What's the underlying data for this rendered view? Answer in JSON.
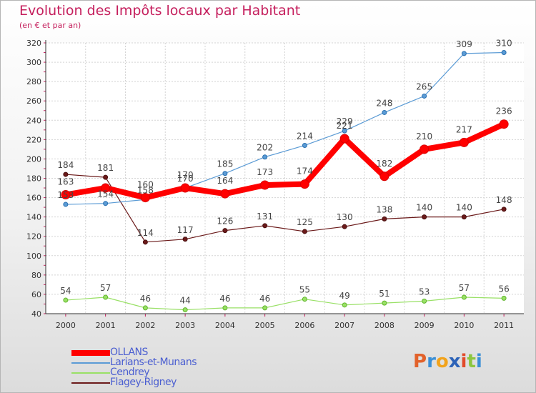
{
  "chart_data": {
    "type": "line",
    "title": "Evolution des Impôts locaux par Habitant",
    "subtitle": "(en € et par an)",
    "xlabel": "",
    "ylabel": "",
    "categories": [
      "2000",
      "2001",
      "2002",
      "2003",
      "2004",
      "2005",
      "2006",
      "2007",
      "2008",
      "2009",
      "2010",
      "2011"
    ],
    "ylim": [
      40,
      320
    ],
    "yticks": [
      "40",
      "60",
      "80",
      "100",
      "120",
      "140",
      "160",
      "180",
      "200",
      "220",
      "240",
      "260",
      "280",
      "300",
      "320"
    ],
    "grid": true,
    "legend_position": "bottom-left",
    "series": [
      {
        "name": "OLLANS",
        "color": "#ff0000",
        "values": [
          163,
          170,
          160,
          170,
          164,
          173,
          174,
          221,
          182,
          210,
          217,
          236
        ],
        "labels": [
          "163",
          "",
          "160",
          "170",
          "164",
          "173",
          "174",
          "221",
          "182",
          "210",
          "217",
          "236"
        ]
      },
      {
        "name": "Larians-et-Munans",
        "color": "#5b9bd5",
        "values": [
          153,
          154,
          158,
          170,
          185,
          202,
          214,
          229,
          248,
          265,
          309,
          310
        ],
        "labels": [
          "153",
          "154",
          "158",
          "170",
          "185",
          "202",
          "214",
          "229",
          "248",
          "265",
          "309",
          "310"
        ]
      },
      {
        "name": "Cendrey",
        "color": "#99e066",
        "values": [
          54,
          57,
          46,
          44,
          46,
          46,
          55,
          49,
          51,
          53,
          57,
          56
        ],
        "labels": [
          "54",
          "57",
          "46",
          "44",
          "46",
          "46",
          "55",
          "49",
          "51",
          "53",
          "57",
          "56"
        ]
      },
      {
        "name": "Flagey-Rigney",
        "color": "#6b1a1a",
        "values": [
          184,
          181,
          114,
          117,
          126,
          131,
          125,
          130,
          138,
          140,
          140,
          148
        ],
        "labels": [
          "184",
          "181",
          "114",
          "117",
          "126",
          "131",
          "125",
          "130",
          "138",
          "140",
          "140",
          "148"
        ]
      }
    ]
  },
  "watermark": "Proxiti"
}
